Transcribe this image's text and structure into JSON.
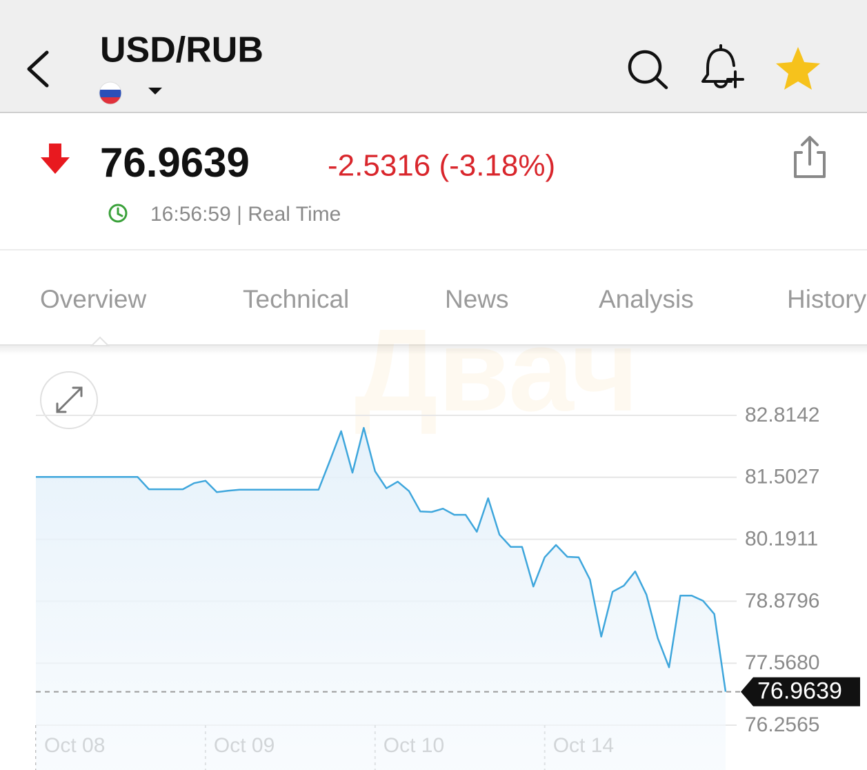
{
  "header": {
    "title": "USD/RUB"
  },
  "quote": {
    "price": "76.9639",
    "change": "-2.5316 (-3.18%)",
    "time": "16:56:59 | Real Time"
  },
  "tabs": [
    "Overview",
    "Technical",
    "News",
    "Analysis",
    "History"
  ],
  "watermark": "Двач",
  "chart_data": {
    "type": "line",
    "color": "#3ea6dc",
    "grid": true,
    "categories": [
      "Oct 08",
      null,
      null,
      null,
      null,
      null,
      null,
      null,
      null,
      null,
      null,
      null,
      null,
      null,
      null,
      "Oct 09",
      null,
      null,
      null,
      null,
      null,
      null,
      null,
      null,
      null,
      null,
      null,
      null,
      null,
      null,
      "Oct 10",
      null,
      null,
      null,
      null,
      null,
      null,
      null,
      null,
      null,
      null,
      null,
      null,
      null,
      null,
      "Oct 14",
      null,
      null,
      null,
      null,
      null,
      null,
      null,
      null,
      null,
      null,
      null,
      null,
      null,
      null,
      null,
      null
    ],
    "values": [
      81.51,
      81.51,
      81.51,
      81.51,
      81.51,
      81.51,
      81.51,
      81.51,
      81.51,
      81.51,
      81.25,
      81.25,
      81.25,
      81.25,
      81.38,
      81.43,
      81.19,
      81.22,
      81.24,
      81.24,
      81.24,
      81.24,
      81.24,
      81.24,
      81.24,
      81.24,
      81.85,
      82.48,
      81.6,
      82.55,
      81.63,
      81.27,
      81.41,
      81.21,
      80.78,
      80.77,
      80.84,
      80.71,
      80.71,
      80.35,
      81.06,
      80.29,
      80.03,
      80.03,
      79.19,
      79.81,
      80.07,
      79.82,
      79.81,
      79.34,
      78.13,
      79.08,
      79.21,
      79.51,
      79.02,
      78.1,
      77.48,
      79.0,
      79.0,
      78.89,
      78.61,
      76.9639
    ],
    "ylim": [
      76.2565,
      82.8142
    ],
    "yticks": [
      82.8142,
      81.5027,
      80.1911,
      78.8796,
      {
        "value": 77.568,
        "label": "77.5680"
      },
      76.2565
    ]
  }
}
